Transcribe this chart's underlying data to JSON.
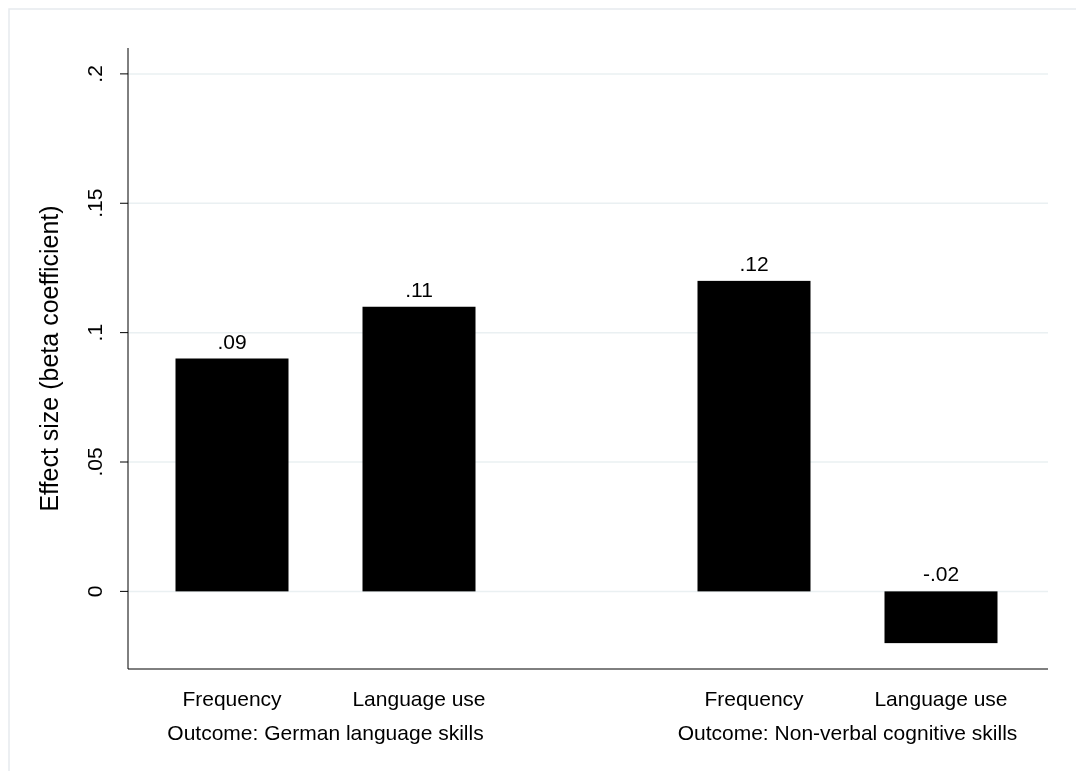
{
  "chart_data": {
    "type": "bar",
    "ylabel": "Effect size (beta coefficient)",
    "categories": [
      "Frequency",
      "Language use",
      "Frequency",
      "Language use"
    ],
    "values": [
      0.09,
      0.11,
      0.12,
      -0.02
    ],
    "value_labels": [
      ".09",
      ".11",
      ".12",
      "-.02"
    ],
    "color": "#000000",
    "ylim": [
      -0.03,
      0.21
    ],
    "yticks": [
      0,
      {
        "value": 0.05,
        "label": ".05"
      },
      {
        "value": 0.1,
        "label": ".1"
      },
      {
        "value": 0.15,
        "label": ".15"
      },
      {
        "value": 0.2,
        "label": ".2"
      }
    ],
    "grid": "y",
    "annotations": [
      "Outcome: German language skills",
      "Outcome: Non-verbal cognitive skills"
    ]
  }
}
